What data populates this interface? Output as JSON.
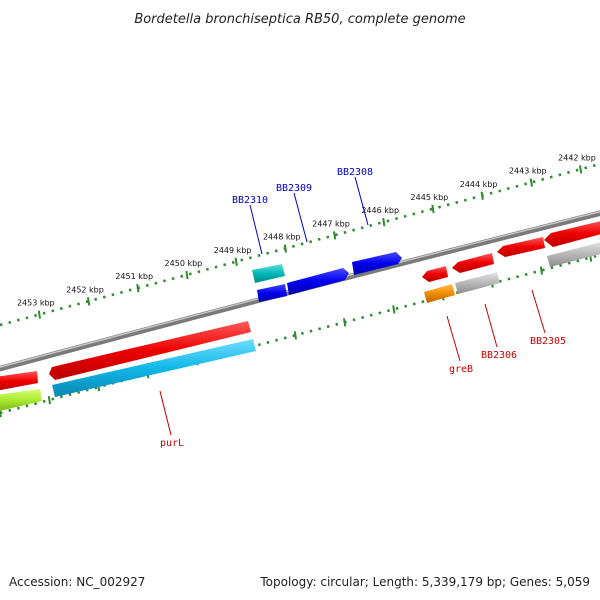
{
  "title": "Bordetella bronchiseptica RB50, complete genome",
  "accession": "Accession: NC_002927",
  "topology": "Topology: circular; Length: 5,339,179 bp; Genes: 5,059",
  "upper_scale_labels": [
    "2442 kbp",
    "2443 kbp",
    "2444 kbp",
    "2445 kbp",
    "2446 kbp",
    "2447 kbp",
    "2448 kbp",
    "2449 kbp",
    "2450 kbp",
    "2451 kbp",
    "2452 kbp",
    "2453 kbp"
  ],
  "gene_labels": {
    "bb2310": "BB2310",
    "bb2309": "BB2309",
    "bb2308": "BB2308",
    "greb": "greB",
    "bb2306": "BB2306",
    "bb2305": "BB2305",
    "purl": "purL"
  },
  "colors": {
    "backbone": "#8a8a8a",
    "scale_dots": "#2e8b2e",
    "gene_red": "#ee0000",
    "gene_blue": "#0000ee",
    "gene_teal": "#00b8b8",
    "gene_cyan": "#10b8e8",
    "gene_orange": "#f08c00",
    "gene_lime": "#a8e830",
    "gene_gray": "#b8b8b8"
  }
}
